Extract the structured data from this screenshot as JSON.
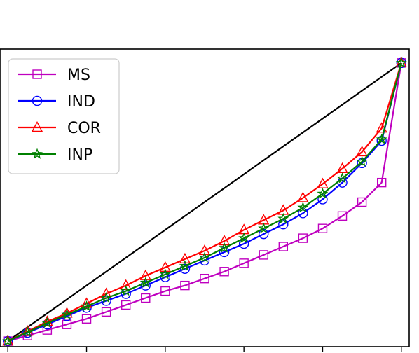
{
  "chart_data": {
    "type": "line",
    "title": "",
    "xlabel": "",
    "ylabel": "",
    "xlim": [
      -0.02,
      1.02
    ],
    "ylim": [
      -0.02,
      1.05
    ],
    "legend_position": "top-left",
    "grid": false,
    "reference_line": {
      "x": [
        0,
        1
      ],
      "y": [
        0,
        1
      ],
      "color": "#000000"
    },
    "series": [
      {
        "name": "MS",
        "color": "#bf00bf",
        "marker": "square",
        "x": [
          0,
          0.05,
          0.1,
          0.15,
          0.2,
          0.25,
          0.3,
          0.35,
          0.4,
          0.45,
          0.5,
          0.55,
          0.6,
          0.65,
          0.7,
          0.75,
          0.8,
          0.85,
          0.9,
          0.95,
          1.0
        ],
        "y": [
          0.0,
          0.02,
          0.04,
          0.06,
          0.08,
          0.105,
          0.13,
          0.155,
          0.18,
          0.2,
          0.225,
          0.25,
          0.28,
          0.31,
          0.34,
          0.37,
          0.405,
          0.45,
          0.5,
          0.57,
          1.0
        ]
      },
      {
        "name": "IND",
        "color": "#0000ff",
        "marker": "circle",
        "x": [
          0,
          0.05,
          0.1,
          0.15,
          0.2,
          0.25,
          0.3,
          0.35,
          0.4,
          0.45,
          0.5,
          0.55,
          0.6,
          0.65,
          0.7,
          0.75,
          0.8,
          0.85,
          0.9,
          0.95,
          1.0
        ],
        "y": [
          0.0,
          0.03,
          0.06,
          0.09,
          0.12,
          0.145,
          0.17,
          0.2,
          0.23,
          0.26,
          0.29,
          0.32,
          0.35,
          0.385,
          0.42,
          0.46,
          0.51,
          0.57,
          0.64,
          0.72,
          1.0
        ]
      },
      {
        "name": "COR",
        "color": "#ff0000",
        "marker": "triangle",
        "x": [
          0,
          0.05,
          0.1,
          0.15,
          0.2,
          0.25,
          0.3,
          0.35,
          0.4,
          0.45,
          0.5,
          0.55,
          0.6,
          0.65,
          0.7,
          0.75,
          0.8,
          0.85,
          0.9,
          0.95,
          1.0
        ],
        "y": [
          0.0,
          0.035,
          0.07,
          0.1,
          0.135,
          0.17,
          0.2,
          0.235,
          0.265,
          0.295,
          0.325,
          0.36,
          0.4,
          0.435,
          0.47,
          0.515,
          0.565,
          0.62,
          0.68,
          0.765,
          1.0
        ]
      },
      {
        "name": "INP",
        "color": "#008000",
        "marker": "star",
        "x": [
          0,
          0.05,
          0.1,
          0.15,
          0.2,
          0.25,
          0.3,
          0.35,
          0.4,
          0.45,
          0.5,
          0.55,
          0.6,
          0.65,
          0.7,
          0.75,
          0.8,
          0.85,
          0.9,
          0.95,
          1.0
        ],
        "y": [
          0.0,
          0.032,
          0.065,
          0.095,
          0.125,
          0.155,
          0.18,
          0.21,
          0.24,
          0.27,
          0.3,
          0.335,
          0.37,
          0.405,
          0.44,
          0.48,
          0.53,
          0.585,
          0.645,
          0.725,
          1.0
        ]
      }
    ]
  }
}
